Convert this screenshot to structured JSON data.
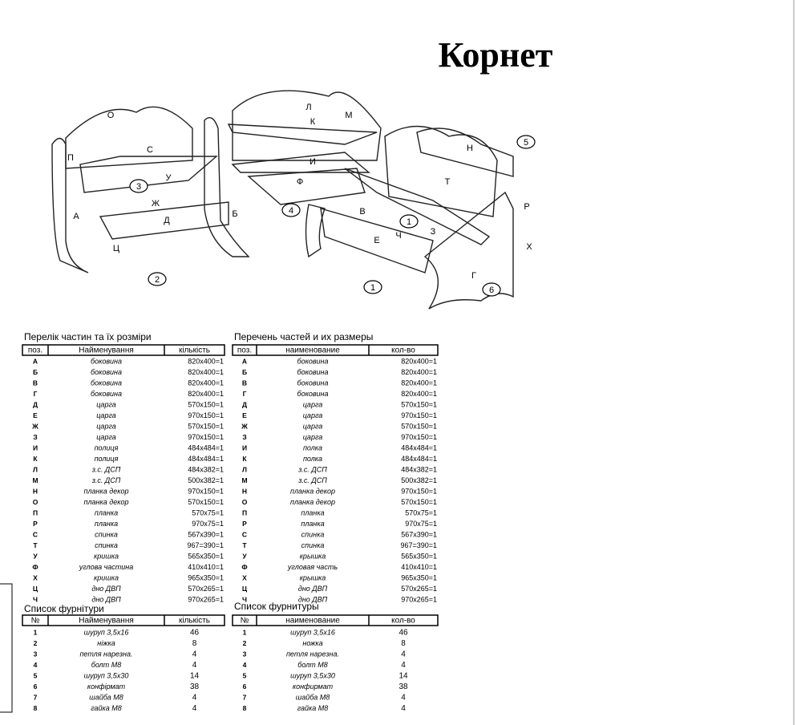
{
  "title": "Корнет",
  "diagram": {
    "labels": [
      "О",
      "С",
      "П",
      "У",
      "3",
      "Ж",
      "Д",
      "А",
      "Б",
      "Ц",
      "2",
      "Л",
      "К",
      "М",
      "И",
      "Ф",
      "4",
      "В",
      "Е",
      "Ч",
      "1",
      "З",
      "Н",
      "Т",
      "Р",
      "Х",
      "Г",
      "6",
      "5",
      "1"
    ]
  },
  "parts_ua": {
    "title": "Перелік частин та їх розміри",
    "header": [
      "поз.",
      "Найменування",
      "кількість"
    ],
    "rows": [
      [
        "А",
        "боковина",
        "820х400=1"
      ],
      [
        "Б",
        "боковина",
        "820х400=1"
      ],
      [
        "В",
        "боковина",
        "820х400=1"
      ],
      [
        "Г",
        "боковина",
        "820х400=1"
      ],
      [
        "Д",
        "царга",
        "570х150=1"
      ],
      [
        "Е",
        "царга",
        "970х150=1"
      ],
      [
        "Ж",
        "царга",
        "570х150=1"
      ],
      [
        "З",
        "царга",
        "970х150=1"
      ],
      [
        "И",
        "полиця",
        "484х484=1"
      ],
      [
        "К",
        "полиця",
        "484х484=1"
      ],
      [
        "Л",
        "з.с. ДСП",
        "484х382=1"
      ],
      [
        "М",
        "з.с. ДСП",
        "500х382=1"
      ],
      [
        "Н",
        "планка декор",
        "970х150=1"
      ],
      [
        "О",
        "планка декор",
        "570х150=1"
      ],
      [
        "П",
        "планка",
        "570х75=1"
      ],
      [
        "Р",
        "планка",
        "970х75=1"
      ],
      [
        "С",
        "спинка",
        "567х390=1"
      ],
      [
        "Т",
        "спинка",
        "967=390=1"
      ],
      [
        "У",
        "кришка",
        "565х350=1"
      ],
      [
        "Ф",
        "углова частина",
        "410х410=1"
      ],
      [
        "Х",
        "кришка",
        "965х350=1"
      ],
      [
        "Ц",
        "дно ДВП",
        "570х265=1"
      ],
      [
        "Ч",
        "дно ДВП",
        "970х265=1"
      ]
    ]
  },
  "parts_ru": {
    "title": "Перечень частей и их размеры",
    "header": [
      "поз.",
      "наименование",
      "кол-во"
    ],
    "rows": [
      [
        "А",
        "боковина",
        "820х400=1"
      ],
      [
        "Б",
        "боковина",
        "820х400=1"
      ],
      [
        "В",
        "боковина",
        "820х400=1"
      ],
      [
        "Г",
        "боковина",
        "820х400=1"
      ],
      [
        "Д",
        "царга",
        "570х150=1"
      ],
      [
        "Е",
        "царга",
        "970х150=1"
      ],
      [
        "Ж",
        "царга",
        "570х150=1"
      ],
      [
        "З",
        "царга",
        "970х150=1"
      ],
      [
        "И",
        "полка",
        "484х484=1"
      ],
      [
        "К",
        "полка",
        "484х484=1"
      ],
      [
        "Л",
        "з.с. ДСП",
        "484х382=1"
      ],
      [
        "М",
        "з.с. ДСП",
        "500х382=1"
      ],
      [
        "Н",
        "планка декор",
        "970х150=1"
      ],
      [
        "О",
        "планка декор",
        "570х150=1"
      ],
      [
        "П",
        "планка",
        "570х75=1"
      ],
      [
        "Р",
        "планка",
        "970х75=1"
      ],
      [
        "С",
        "спинка",
        "567х390=1"
      ],
      [
        "Т",
        "спинка",
        "967=390=1"
      ],
      [
        "У",
        "крышка",
        "565х350=1"
      ],
      [
        "Ф",
        "угловая часть",
        "410х410=1"
      ],
      [
        "Х",
        "крышка",
        "965х350=1"
      ],
      [
        "Ц",
        "дно ДВП",
        "570х265=1"
      ],
      [
        "Ч",
        "дно ДВП",
        "970х265=1"
      ]
    ]
  },
  "fittings_ua": {
    "title": "Список фурнітури",
    "header": [
      "№",
      "Найменування",
      "кількість"
    ],
    "rows": [
      [
        "1",
        "шуруп 3,5х16",
        "46"
      ],
      [
        "2",
        "ніжка",
        "8"
      ],
      [
        "3",
        "петля нарезна.",
        "4"
      ],
      [
        "4",
        "болт М8",
        "4"
      ],
      [
        "5",
        "шуруп 3,5х30",
        "14"
      ],
      [
        "6",
        "конфірмат",
        "38"
      ],
      [
        "7",
        "шайба М8",
        "4"
      ],
      [
        "8",
        "гайка М8",
        "4"
      ]
    ]
  },
  "fittings_ru": {
    "title": "Список фурнитуры",
    "header": [
      "№",
      "наименование",
      "кол-во"
    ],
    "rows": [
      [
        "1",
        "шуруп 3,5х16",
        "46"
      ],
      [
        "2",
        "ножка",
        "8"
      ],
      [
        "3",
        "петля нарезна.",
        "4"
      ],
      [
        "4",
        "болт М8",
        "4"
      ],
      [
        "5",
        "шуруп 3,5х30",
        "14"
      ],
      [
        "6",
        "конфирмат",
        "38"
      ],
      [
        "7",
        "шайба М8",
        "4"
      ],
      [
        "8",
        "гайка М8",
        "4"
      ]
    ]
  }
}
